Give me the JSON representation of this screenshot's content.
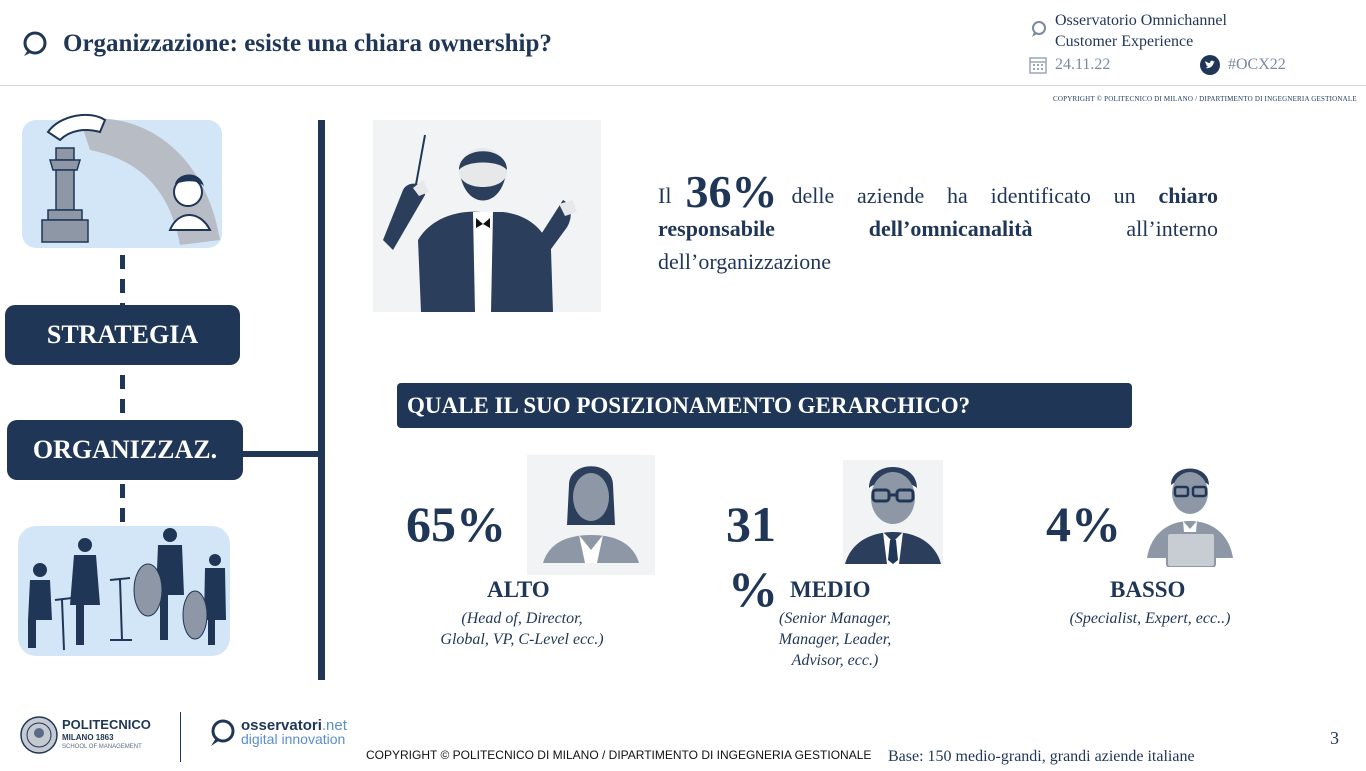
{
  "header": {
    "title": "Organizzazione: esiste una chiara ownership?",
    "brand_line1": "Osservatorio Omnichannel",
    "brand_line2": "Customer Experience",
    "date": "24.11.22",
    "hashtag": "#OCX22",
    "copyright_small": "COPYRIGHT © POLITECNICO DI MILANO / DIPARTIMENTO DI INGEGNERIA GESTIONALE"
  },
  "left": {
    "strategia": "STRATEGIA",
    "organizzazione": "ORGANIZZAZ."
  },
  "main": {
    "stat_prefix": "Il",
    "stat_percent": "36%",
    "stat_mid": "delle aziende ha identificato un",
    "stat_bold1": "chiaro",
    "stat_bold2": "responsabile dell’omnicanalità",
    "stat_tail": "all’interno dell’organizzazione",
    "question": "QUALE IL SUO POSIZIONAMENTO GERARCHICO?",
    "levels": [
      {
        "percent": "65%",
        "label": "ALTO",
        "desc_line1": "(Head of, Director,",
        "desc_line2": "Global, VP, C-Level ecc.)",
        "desc_line3": ""
      },
      {
        "percent_line1": "31",
        "percent_line2": "%",
        "label": "MEDIO",
        "desc_line1": "(Senior Manager,",
        "desc_line2": "Manager, Leader,",
        "desc_line3": "Advisor, ecc.)"
      },
      {
        "percent": "4%",
        "label": "BASSO",
        "desc_line1": "(Specialist, Expert, ecc..)",
        "desc_line2": "",
        "desc_line3": ""
      }
    ]
  },
  "footer": {
    "poli_name": "POLITECNICO",
    "poli_sub1": "MILANO 1863",
    "poli_sub2": "SCHOOL OF MANAGEMENT",
    "oss_name": "osservatori",
    "oss_suffix": ".net",
    "oss_sub": "digital innovation",
    "copyright": "COPYRIGHT © POLITECNICO DI MILANO / DIPARTIMENTO DI INGEGNERIA GESTIONALE",
    "base": "Base: 150 medio-grandi, grandi aziende italiane",
    "page": "3"
  },
  "colors": {
    "navy": "#1f3657",
    "light_blue": "#d3e6f7",
    "grey_text": "#7a8aa0",
    "brand_blue": "#5b8ec9"
  }
}
